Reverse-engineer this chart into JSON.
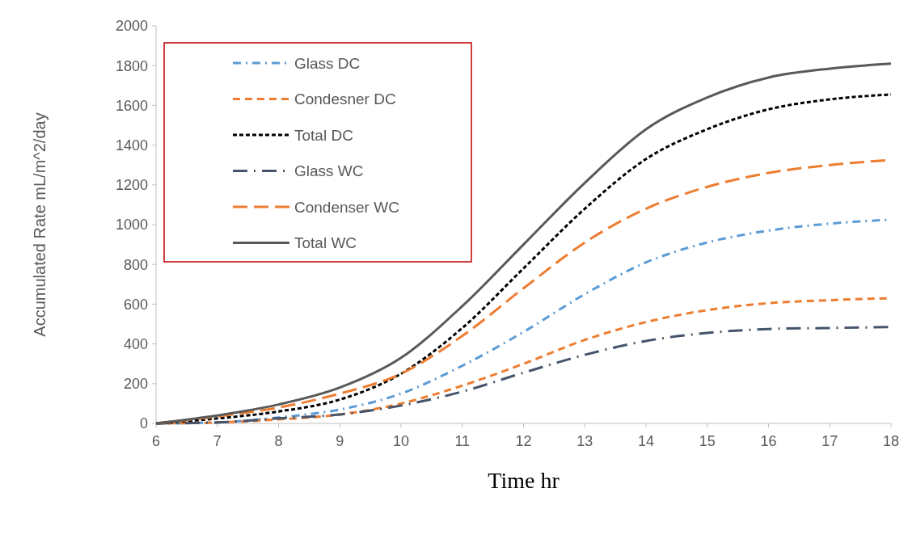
{
  "chart_data": {
    "type": "line",
    "xlabel": "Time hr",
    "ylabel": "Accumulated Rate mL/m^2/day",
    "x": [
      6,
      7,
      8,
      9,
      10,
      11,
      12,
      13,
      14,
      15,
      16,
      17,
      18
    ],
    "xlim": [
      6,
      18
    ],
    "xticks": [
      6,
      7,
      8,
      9,
      10,
      11,
      12,
      13,
      14,
      15,
      16,
      17,
      18
    ],
    "ylim": [
      0,
      2000
    ],
    "yticks": [
      0,
      200,
      400,
      600,
      800,
      1000,
      1200,
      1400,
      1600,
      1800,
      2000
    ],
    "grid": false,
    "legend": "top left",
    "marker": "none",
    "series": [
      {
        "name": "Glass DC",
        "color": "#5b9bd5",
        "line_style": "dashdot",
        "values": [
          0,
          5,
          30,
          70,
          150,
          290,
          460,
          650,
          810,
          910,
          970,
          1005,
          1025
        ]
      },
      {
        "name": "Condesner DC",
        "color": "#ed7d31",
        "line_style": "dashed",
        "values": [
          0,
          5,
          20,
          45,
          100,
          190,
          300,
          420,
          510,
          570,
          605,
          620,
          630
        ]
      },
      {
        "name": "Total DC",
        "color": "#000000",
        "line_style": "dotted",
        "values": [
          0,
          25,
          60,
          120,
          250,
          480,
          780,
          1080,
          1330,
          1480,
          1580,
          1630,
          1655
        ]
      },
      {
        "name": "Glass WC",
        "color": "#44546a",
        "line_style": "longdashdot",
        "values": [
          0,
          5,
          25,
          45,
          90,
          160,
          255,
          345,
          415,
          455,
          475,
          480,
          485
        ]
      },
      {
        "name": "Condenser WC",
        "color": "#ed7d31",
        "line_style": "longdash",
        "values": [
          0,
          35,
          80,
          150,
          250,
          440,
          680,
          910,
          1080,
          1190,
          1260,
          1300,
          1325
        ]
      },
      {
        "name": "Total WC",
        "color": "#595959",
        "line_style": "solid",
        "values": [
          0,
          40,
          95,
          180,
          330,
          590,
          900,
          1210,
          1480,
          1640,
          1740,
          1785,
          1810
        ]
      }
    ]
  }
}
